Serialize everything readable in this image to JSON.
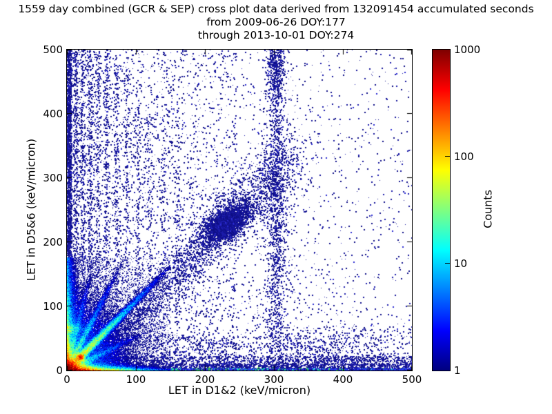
{
  "figure": {
    "title_lines": [
      "1559 day combined (GCR & SEP) cross plot data derived from 132091454 accumulated seconds",
      "from 2009-06-26 DOY:177",
      "through 2013-10-01 DOY:274"
    ]
  },
  "chart_data": {
    "type": "heatmap",
    "title": "1559 day combined (GCR & SEP) cross plot data derived from 132091454 accumulated seconds",
    "subtitle": [
      "from 2009-06-26 DOY:177",
      "through 2013-10-01 DOY:274"
    ],
    "duration_days": 1559,
    "accumulated_seconds": 132091454,
    "date_start": "2009-06-26",
    "doy_start": 177,
    "date_end": "2013-10-01",
    "doy_end": 274,
    "xlabel": "LET in D1&2 (keV/micron)",
    "ylabel": "LET in D5&6 (keV/micron)",
    "xlim": [
      0,
      500
    ],
    "ylim": [
      0,
      500
    ],
    "x_ticks": [
      0,
      100,
      200,
      300,
      400,
      500
    ],
    "y_ticks": [
      0,
      100,
      200,
      300,
      400,
      500
    ],
    "grid": false,
    "colorbar": {
      "label": "Counts",
      "scale": "log",
      "min": 1,
      "max": 1000,
      "ticks": [
        1,
        10,
        100,
        1000
      ],
      "colormap": "jet"
    },
    "render": {
      "seed": 1337,
      "point_palette": [
        "#0e0e86",
        "#15159a",
        "#1c1cab",
        "#10108c"
      ],
      "bright_point": "#2b2bd2",
      "field": {
        "x_extent": 150,
        "y_extent": 176,
        "components": [
          {
            "type": "core",
            "amp": 2200,
            "sx": 9,
            "sy": 6.5,
            "p": 1.15
          },
          {
            "type": "bottom_edge",
            "amp": 900,
            "ly": 2.2,
            "lx": 26
          },
          {
            "type": "left_edge",
            "amp": 420,
            "lx": 2.0,
            "ly": 22
          },
          {
            "type": "left_edge",
            "amp": 40,
            "lx": 5,
            "ly": 90
          },
          {
            "type": "green_dash",
            "amp": 45,
            "lx": 7,
            "y0": 64,
            "wy": 30
          },
          {
            "type": "fan",
            "amp": 12,
            "scale": 35,
            "yfactor": 0.8
          },
          {
            "type": "ray",
            "slope": 0.52,
            "amp": 25,
            "lambda": 28,
            "w": 2.5
          },
          {
            "type": "ray",
            "slope": 1.08,
            "amp": 150,
            "lambda": 30,
            "w": 2.8
          },
          {
            "type": "ray",
            "slope": 2.1,
            "amp": 45,
            "lambda": 18,
            "w": 2.4
          },
          {
            "type": "ray",
            "slope": 4.4,
            "amp": 22,
            "lambda": 9,
            "w": 2.0
          },
          {
            "type": "spot",
            "x0": 19,
            "y0": 20,
            "amp": 380,
            "r2": 14
          }
        ]
      },
      "diag_band": {
        "n": 3200,
        "tmin": 40,
        "tmax": 335,
        "slope": 1.12,
        "intercept": -28,
        "w0": 6,
        "wgrow": 0.05,
        "weight": {
          "mu": 225,
          "sigma": 115,
          "floor": 0.35
        }
      },
      "blob": {
        "n": 2400,
        "cx": 231,
        "cy": 229,
        "sx": 16,
        "sy": 13,
        "corr": 0.45
      },
      "sprays": [
        {
          "name": "left-edge-column",
          "n": 2400,
          "x": {
            "dist": "pow",
            "max": 6,
            "exp": 1.2
          },
          "y": {
            "dist": "pow",
            "max": 500,
            "exp": 0.95
          }
        },
        {
          "name": "bottom-band",
          "n": 2600,
          "x": {
            "dist": "pow",
            "max": 500,
            "exp": 1.25
          },
          "y": {
            "dist": "pow",
            "max": 10,
            "exp": 1.7
          },
          "accent": {
            "prob": 0.4,
            "maxY": 4,
            "fadeX": 300,
            "colors": [
              "#2fd12f",
              "#17cdcd",
              "#96dd20"
            ]
          }
        },
        {
          "name": "bottom-line",
          "n": 2000,
          "x": {
            "dist": "uniform",
            "min": 0,
            "max": 500
          },
          "y": {
            "dist": "pow",
            "max": 3,
            "exp": 1.0
          },
          "palette": [
            "#2030d8",
            "#2a3cf0",
            "#1a1ab0",
            "#2233e6"
          ],
          "accent": {
            "prob": 0.35,
            "maxY": 3,
            "fadeX": 340,
            "colors": [
              "#18cfcf",
              "#35d435",
              "#20e0a0"
            ]
          }
        },
        {
          "name": "bottom-speckle",
          "n": 1500,
          "x": {
            "dist": "pow",
            "max": 500,
            "exp": 1.1
          },
          "y": {
            "dist": "uniform",
            "min": 8,
            "max": 22
          }
        },
        {
          "name": "low-speckle",
          "n": 1100,
          "x": {
            "dist": "pow",
            "max": 460,
            "exp": 1.5
          },
          "y": {
            "dist": "uniform",
            "min": 20,
            "max": 55
          }
        },
        {
          "name": "streak-x12",
          "n": 520,
          "x": {
            "dist": "gauss",
            "mu": 12,
            "sigma": 2.2
          },
          "y": {
            "dist": "pow",
            "max": 500,
            "exp": 0.9
          }
        },
        {
          "name": "streak-x22",
          "n": 430,
          "x": {
            "dist": "gauss",
            "mu": 22,
            "sigma": 2.2
          },
          "y": {
            "dist": "pow",
            "max": 500,
            "exp": 0.9
          }
        },
        {
          "name": "streak-x33",
          "n": 390,
          "x": {
            "dist": "gauss",
            "mu": 33,
            "sigma": 2.2
          },
          "y": {
            "dist": "pow",
            "max": 500,
            "exp": 0.9
          }
        },
        {
          "name": "streak-x44",
          "n": 340,
          "x": {
            "dist": "gauss",
            "mu": 44,
            "sigma": 2.3
          },
          "y": {
            "dist": "pow",
            "max": 500,
            "exp": 0.9
          }
        },
        {
          "name": "streak-x57",
          "n": 300,
          "x": {
            "dist": "gauss",
            "mu": 57,
            "sigma": 2.3
          },
          "y": {
            "dist": "pow",
            "max": 500,
            "exp": 0.9
          }
        },
        {
          "name": "streak-x71",
          "n": 260,
          "x": {
            "dist": "gauss",
            "mu": 71,
            "sigma": 2.4
          },
          "y": {
            "dist": "pow",
            "max": 490,
            "exp": 0.9
          }
        },
        {
          "name": "streak-x86",
          "n": 220,
          "x": {
            "dist": "gauss",
            "mu": 86,
            "sigma": 2.4
          },
          "y": {
            "dist": "pow",
            "max": 470,
            "exp": 0.9
          }
        },
        {
          "name": "streak-x102",
          "n": 190,
          "x": {
            "dist": "gauss",
            "mu": 102,
            "sigma": 2.5
          },
          "y": {
            "dist": "pow",
            "max": 440,
            "exp": 0.9
          }
        },
        {
          "name": "streak-x120",
          "n": 160,
          "x": {
            "dist": "gauss",
            "mu": 120,
            "sigma": 2.6
          },
          "y": {
            "dist": "pow",
            "max": 400,
            "exp": 0.9
          }
        },
        {
          "name": "streak-x139",
          "n": 130,
          "x": {
            "dist": "gauss",
            "mu": 139,
            "sigma": 2.6
          },
          "y": {
            "dist": "pow",
            "max": 360,
            "exp": 0.9
          }
        },
        {
          "name": "streak-x160",
          "n": 105,
          "x": {
            "dist": "gauss",
            "mu": 160,
            "sigma": 2.7
          },
          "y": {
            "dist": "pow",
            "max": 330,
            "exp": 0.9
          }
        },
        {
          "name": "streak-x182",
          "n": 85,
          "x": {
            "dist": "gauss",
            "mu": 182,
            "sigma": 2.8
          },
          "y": {
            "dist": "pow",
            "max": 300,
            "exp": 0.9
          }
        },
        {
          "name": "vband-uniform",
          "n": 950,
          "x": {
            "dist": "gauss",
            "mu": 303,
            "sigma": 6.5
          },
          "y": {
            "dist": "uniform",
            "min": 25,
            "max": 500
          }
        },
        {
          "name": "vband-top",
          "n": 420,
          "x": {
            "dist": "gauss",
            "mu": 302,
            "sigma": 7
          },
          "y": {
            "dist": "gauss",
            "mu": 472,
            "sigma": 26
          }
        },
        {
          "name": "vband-mid",
          "n": 330,
          "x": {
            "dist": "gauss",
            "mu": 303,
            "sigma": 9
          },
          "y": {
            "dist": "gauss",
            "mu": 255,
            "sigma": 60
          }
        },
        {
          "name": "vband-tail",
          "n": 260,
          "x": {
            "dist": "gauss",
            "mu": 303,
            "sigma": 15
          },
          "y": {
            "dist": "uniform",
            "min": 50,
            "max": 500
          }
        },
        {
          "name": "bg-left",
          "n": 3800,
          "x": {
            "dist": "pow",
            "max": 245,
            "exp": 1.3
          },
          "y": {
            "dist": "pow",
            "max": 500,
            "exp": 1.15
          }
        },
        {
          "name": "bg-right",
          "n": 1500,
          "x": {
            "dist": "uniform",
            "min": 240,
            "max": 500
          },
          "y": {
            "dist": "pow",
            "max": 500,
            "exp": 1.2
          },
          "accept": {
            "from": 240,
            "scale": 320
          }
        },
        {
          "name": "bg-uniform",
          "n": 380,
          "x": {
            "dist": "uniform",
            "min": 0,
            "max": 500
          },
          "y": {
            "dist": "uniform",
            "min": 0,
            "max": 500
          }
        },
        {
          "name": "bottom-right",
          "n": 520,
          "x": {
            "dist": "uniform",
            "min": 290,
            "max": 500
          },
          "y": {
            "dist": "pow",
            "max": 70,
            "exp": 1.4
          }
        }
      ]
    }
  }
}
